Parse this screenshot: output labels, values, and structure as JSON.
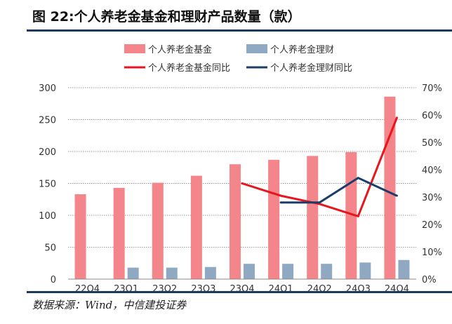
{
  "title": "图 22:个人养老金基金和理财产品数量（款）",
  "source": "数据来源：Wind，中信建投证券",
  "chart_data": {
    "type": "bar",
    "categories": [
      "22Q4",
      "23Q1",
      "23Q2",
      "23Q3",
      "23Q4",
      "24Q1",
      "24Q2",
      "24Q3",
      "24Q4"
    ],
    "series": [
      {
        "name": "个人养老金基金",
        "type": "bar",
        "axis": "left",
        "color": "#f4858a",
        "values": [
          133,
          143,
          151,
          162,
          180,
          187,
          193,
          199,
          286
        ]
      },
      {
        "name": "个人养老金理财",
        "type": "bar",
        "axis": "left",
        "color": "#8fa9c3",
        "values": [
          null,
          18,
          18,
          19,
          24,
          24,
          24,
          26,
          30
        ]
      },
      {
        "name": "个人养老金基金同比",
        "type": "line",
        "axis": "right",
        "color": "#e8151c",
        "values": [
          null,
          null,
          null,
          null,
          0.35,
          0.305,
          0.275,
          0.23,
          0.59
        ]
      },
      {
        "name": "个人养老金理财同比",
        "type": "line",
        "axis": "right",
        "color": "#1a3d6b",
        "values": [
          null,
          null,
          null,
          null,
          null,
          0.28,
          0.28,
          0.37,
          0.305
        ]
      }
    ],
    "y_left": {
      "ylim": [
        0,
        300
      ],
      "ticks": [
        0,
        50,
        100,
        150,
        200,
        250,
        300
      ]
    },
    "y_right": {
      "ylim": [
        0,
        0.7
      ],
      "ticks": [
        "0%",
        "10%",
        "20%",
        "30%",
        "40%",
        "50%",
        "60%",
        "70%"
      ]
    },
    "grid": true,
    "legend": "top"
  }
}
